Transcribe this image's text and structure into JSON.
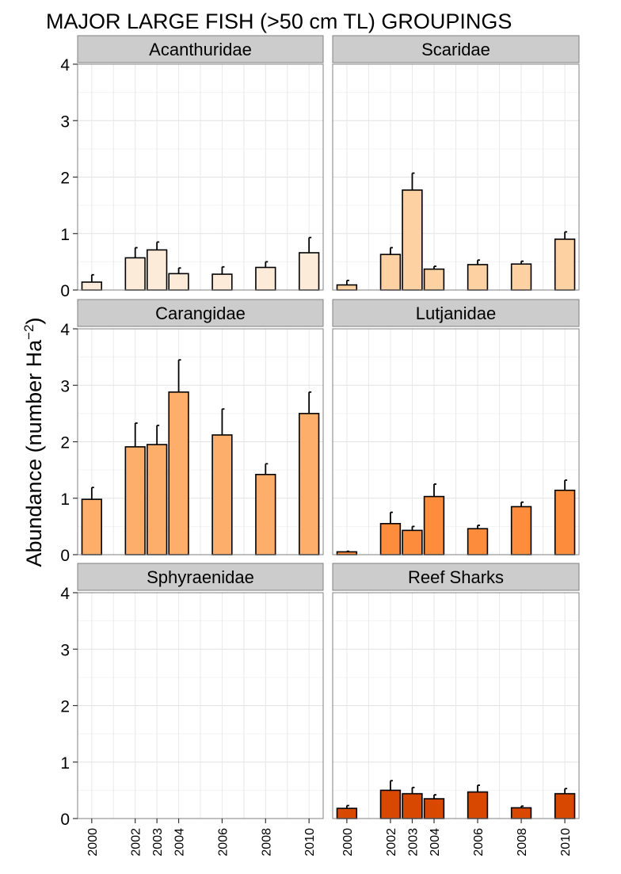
{
  "chart_data": {
    "type": "bar",
    "title": "MAJOR LARGE FISH (>50 cm TL) GROUPINGS",
    "xlabel": "",
    "ylabel": "Abundance (number Ha",
    "ylabel_superscript": "−2",
    "ylabel_close": ")",
    "ylim": [
      0,
      4
    ],
    "yticks": [
      "0",
      "1",
      "2",
      "3",
      "4"
    ],
    "x_positions": [
      2000,
      2001,
      2002,
      2003,
      2004,
      2005,
      2006,
      2007,
      2008,
      2009,
      2010
    ],
    "categories": [
      "2000",
      "2002",
      "2003",
      "2004",
      "2006",
      "2008",
      "2010"
    ],
    "grid": true,
    "facets": [
      {
        "name": "Acanthuridae",
        "color": "#fdebd9",
        "values": [
          0.14,
          0.57,
          0.71,
          0.29,
          0.28,
          0.4,
          0.66
        ],
        "errors": [
          0.13,
          0.18,
          0.14,
          0.1,
          0.13,
          0.1,
          0.27
        ]
      },
      {
        "name": "Scaridae",
        "color": "#fdd1a2",
        "values": [
          0.09,
          0.63,
          1.77,
          0.37,
          0.45,
          0.46,
          0.9
        ],
        "errors": [
          0.08,
          0.12,
          0.3,
          0.05,
          0.08,
          0.05,
          0.13
        ]
      },
      {
        "name": "Carangidae",
        "color": "#fdae6b",
        "values": [
          0.98,
          1.91,
          1.95,
          2.88,
          2.12,
          1.42,
          2.5
        ],
        "errors": [
          0.21,
          0.42,
          0.34,
          0.57,
          0.46,
          0.19,
          0.38
        ]
      },
      {
        "name": "Lutjanidae",
        "color": "#fd8d3c",
        "values": [
          0.05,
          0.55,
          0.43,
          1.03,
          0.46,
          0.85,
          1.14
        ],
        "errors": [
          0.01,
          0.2,
          0.07,
          0.22,
          0.06,
          0.08,
          0.18
        ]
      },
      {
        "name": "Sphyraenidae",
        "color": "#f16913",
        "values": [
          0,
          0,
          0,
          0,
          0,
          0,
          0
        ],
        "errors": [
          0,
          0,
          0,
          0,
          0,
          0,
          0
        ]
      },
      {
        "name": "Reef Sharks",
        "color": "#d94801",
        "values": [
          0.18,
          0.5,
          0.44,
          0.35,
          0.47,
          0.19,
          0.44
        ],
        "errors": [
          0.05,
          0.17,
          0.11,
          0.07,
          0.12,
          0.03,
          0.09
        ]
      }
    ]
  }
}
